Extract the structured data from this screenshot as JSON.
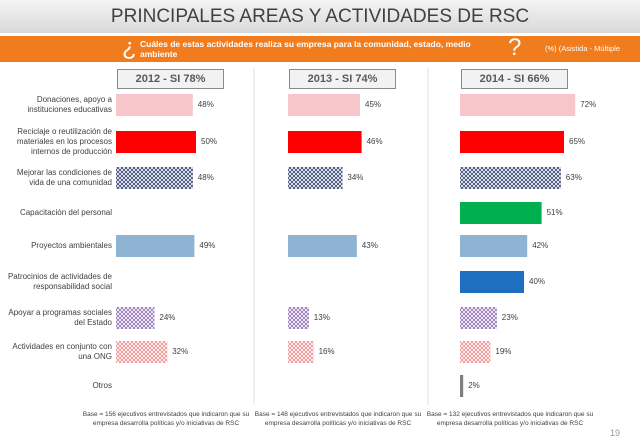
{
  "title": "PRINCIPALES AREAS Y ACTIVIDADES DE RSC",
  "question": {
    "open_mark": "¿",
    "text": "Cuáles de estas actividades realiza su empresa para la comunidad, estado, medio ambiente",
    "close_mark": "?",
    "note": "(%) (Asistida - Múltiple"
  },
  "page_number": "19",
  "chart_data": [
    {
      "type": "bar",
      "orientation": "horizontal",
      "title": "2012 - SI 78%",
      "categories": [
        "Donaciones, apoyo a instituciones educativas",
        "Reciclaje o reutilización de materiales en los procesos internos de producción",
        "Mejorar las condiciones de vida de una comunidad",
        "Capacitación del personal",
        "Proyectos ambientales",
        "Patrocinios de actividades de responsabilidad social",
        "Apoyar a programas sociales del Estado",
        "Actividades en conjunto con una ONG",
        "Otros"
      ],
      "values": [
        48,
        50,
        48,
        null,
        49,
        null,
        24,
        32,
        null
      ],
      "value_labels": [
        "48%",
        "50%",
        "48%",
        null,
        "49%",
        null,
        "24%",
        "32%",
        null
      ],
      "colors": [
        "#f7c6cb",
        "#ff0000",
        "#2e3c6e",
        "#00b050",
        "#8fb3d3",
        "#1f6fc0",
        "#8c6bb1",
        "#f08a8a",
        "#7f7f7f"
      ],
      "hatched": [
        false,
        false,
        true,
        false,
        false,
        false,
        true,
        true,
        false
      ],
      "xlim": [
        0,
        100
      ],
      "footnote": "Base = 156 ejecutivos entrevistados que indicaron que su empresa desarrolla políticas y/o iniciativas de RSC"
    },
    {
      "type": "bar",
      "orientation": "horizontal",
      "title": "2013 - SI 74%",
      "values": [
        45,
        46,
        34,
        null,
        43,
        null,
        13,
        16,
        null
      ],
      "value_labels": [
        "45%",
        "46%",
        "34%",
        null,
        "43%",
        null,
        "13%",
        "16%",
        null
      ],
      "colors": [
        "#f7c6cb",
        "#ff0000",
        "#2e3c6e",
        "#00b050",
        "#8fb3d3",
        "#1f6fc0",
        "#8c6bb1",
        "#f08a8a",
        "#7f7f7f"
      ],
      "hatched": [
        false,
        false,
        true,
        false,
        false,
        false,
        true,
        true,
        false
      ],
      "xlim": [
        0,
        100
      ],
      "footnote": "Base = 148 ejecutivos entrevistados que indicaron que su empresa desarrolla políticas y/o iniciativas de RSC"
    },
    {
      "type": "bar",
      "orientation": "horizontal",
      "title": "2014 - SI 66%",
      "values": [
        72,
        65,
        63,
        51,
        42,
        40,
        23,
        19,
        2
      ],
      "value_labels": [
        "72%",
        "65%",
        "63%",
        "51%",
        "42%",
        "40%",
        "23%",
        "19%",
        "2%"
      ],
      "colors": [
        "#f7c6cb",
        "#ff0000",
        "#2e3c6e",
        "#00b050",
        "#8fb3d3",
        "#1f6fc0",
        "#8c6bb1",
        "#f08a8a",
        "#7f7f7f"
      ],
      "hatched": [
        false,
        false,
        true,
        false,
        false,
        false,
        true,
        true,
        false
      ],
      "xlim": [
        0,
        100
      ],
      "footnote": "Base = 132 ejecutivos entrevistados que indicaron que su empresa desarrolla políticas y/o iniciativas de RSC"
    }
  ]
}
